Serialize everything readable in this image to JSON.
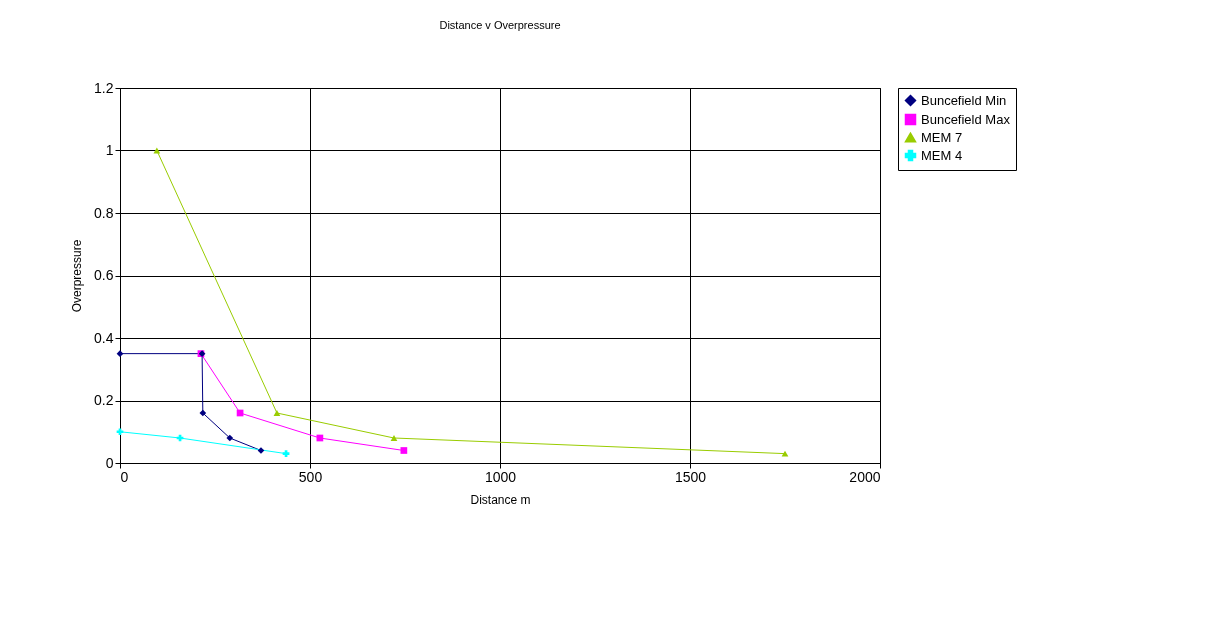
{
  "chart_data": {
    "type": "line",
    "title": "Distance v Overpressure",
    "xlabel": "Distance m",
    "ylabel": "Overpressure",
    "xlim": [
      0,
      2000
    ],
    "xticks": [
      0,
      500,
      1000,
      1500,
      2000
    ],
    "ylim": [
      0,
      1.2
    ],
    "yticks": [
      0,
      0.2,
      0.4,
      0.6,
      0.8,
      1,
      1.2
    ],
    "grid": true,
    "legend": "right",
    "series": [
      {
        "name": "Buncefield Min",
        "color": "#000080",
        "marker": "diamond",
        "x": [
          0,
          216,
          218,
          289,
          371
        ],
        "values": [
          0.35,
          0.35,
          0.16,
          0.08,
          0.04
        ]
      },
      {
        "name": "Buncefield Max",
        "color": "#ff00ff",
        "marker": "square",
        "x": [
          213,
          316,
          526,
          747
        ],
        "values": [
          0.35,
          0.16,
          0.08,
          0.04
        ]
      },
      {
        "name": "MEM 7",
        "color": "#99cc00",
        "marker": "triangle",
        "x": [
          97,
          413,
          721,
          1750
        ],
        "values": [
          1,
          0.16,
          0.08,
          0.03
        ]
      },
      {
        "name": "MEM 4",
        "color": "#00ffff",
        "marker": "cross",
        "x": [
          0,
          158,
          437
        ],
        "values": [
          0.1,
          0.08,
          0.03
        ]
      }
    ]
  }
}
